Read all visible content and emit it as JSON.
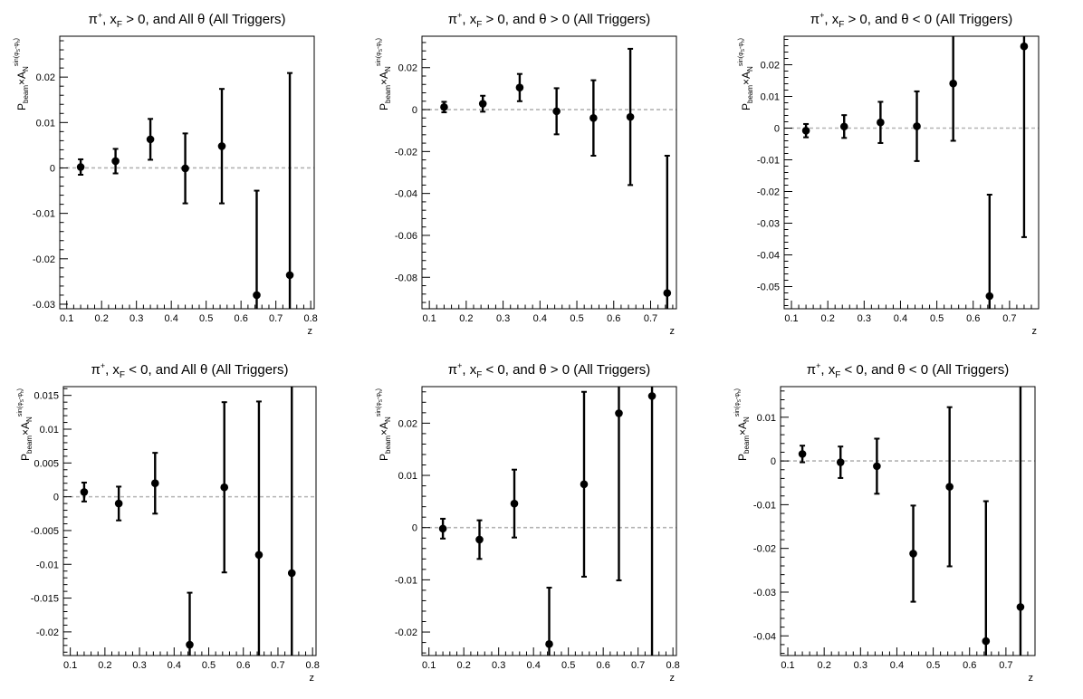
{
  "chart_data": [
    {
      "type": "scatter",
      "title": "π⁺, x_F > 0, and All θ (All Triggers)",
      "xlabel": "z",
      "ylabel": "P_beam × A_N^{sin(φ_S − φ_h)}",
      "xlim": [
        0.08,
        0.81
      ],
      "ylim": [
        -0.031,
        0.029
      ],
      "xticks": [
        0.1,
        0.2,
        0.3,
        0.4,
        0.5,
        0.6,
        0.7,
        0.8
      ],
      "yticks": [
        -0.03,
        -0.02,
        -0.01,
        0,
        0.01,
        0.02
      ],
      "ytick_labels": [
        "-0.03",
        "-0.02",
        "-0.01",
        "0",
        "0.01",
        "0.02"
      ],
      "zero_line": true,
      "grid": false,
      "x": [
        0.14,
        0.24,
        0.34,
        0.44,
        0.545,
        0.645,
        0.74
      ],
      "y": [
        0.0002,
        0.0015,
        0.0063,
        -0.0001,
        0.0048,
        -0.028,
        -0.0236
      ],
      "err": [
        0.0017,
        0.0027,
        0.0045,
        0.0077,
        0.0126,
        0.023,
        0.0445
      ]
    },
    {
      "type": "scatter",
      "title": "π⁺, x_F > 0, and θ > 0 (All Triggers)",
      "xlabel": "z",
      "ylabel": "P_beam × A_N^{sin(φ_S − φ_h)}",
      "xlim": [
        0.08,
        0.77
      ],
      "ylim": [
        -0.095,
        0.035
      ],
      "xticks": [
        0.1,
        0.2,
        0.3,
        0.4,
        0.5,
        0.6,
        0.7
      ],
      "yticks": [
        -0.08,
        -0.06,
        -0.04,
        -0.02,
        0,
        0.02
      ],
      "ytick_labels": [
        "-0.08",
        "-0.06",
        "-0.04",
        "-0.02",
        "0",
        "0.02"
      ],
      "zero_line": true,
      "grid": false,
      "x": [
        0.14,
        0.245,
        0.345,
        0.445,
        0.545,
        0.645,
        0.745
      ],
      "y": [
        0.0012,
        0.0028,
        0.0105,
        -0.0008,
        -0.004,
        -0.0035,
        -0.0875
      ],
      "err": [
        0.0025,
        0.0038,
        0.0065,
        0.011,
        0.018,
        0.0325,
        0.0655
      ]
    },
    {
      "type": "scatter",
      "title": "π⁺, x_F > 0, and θ < 0 (All Triggers)",
      "xlabel": "z",
      "ylabel": "P_beam × A_N^{sin(φ_S − φ_h)}",
      "xlim": [
        0.08,
        0.78
      ],
      "ylim": [
        -0.057,
        0.029
      ],
      "xticks": [
        0.1,
        0.2,
        0.3,
        0.4,
        0.5,
        0.6,
        0.7
      ],
      "yticks": [
        -0.05,
        -0.04,
        -0.03,
        -0.02,
        -0.01,
        0,
        0.01,
        0.02
      ],
      "ytick_labels": [
        "-0.05",
        "-0.04",
        "-0.03",
        "-0.02",
        "-0.01",
        "0",
        "0.01",
        "0.02"
      ],
      "zero_line": true,
      "grid": false,
      "x": [
        0.14,
        0.245,
        0.345,
        0.445,
        0.545,
        0.645,
        0.74
      ],
      "y": [
        -0.0008,
        0.0005,
        0.0018,
        0.0006,
        0.0141,
        -0.053,
        0.0258
      ],
      "err": [
        0.0021,
        0.0036,
        0.0065,
        0.011,
        0.0181,
        0.032,
        0.0602
      ]
    },
    {
      "type": "scatter",
      "title": "π⁺, x_F < 0, and All θ (All Triggers)",
      "xlabel": "z",
      "ylabel": "P_beam × A_N^{sin(φ_S − φ_h)}",
      "xlim": [
        0.08,
        0.81
      ],
      "ylim": [
        -0.0235,
        0.0163
      ],
      "xticks": [
        0.1,
        0.2,
        0.3,
        0.4,
        0.5,
        0.6,
        0.7,
        0.8
      ],
      "yticks": [
        -0.02,
        -0.015,
        -0.01,
        -0.005,
        0,
        0.005,
        0.01,
        0.015
      ],
      "ytick_labels": [
        "-0.02",
        "-0.015",
        "-0.01",
        "-0.005",
        "0",
        "0.005",
        "0.01",
        "0.015"
      ],
      "zero_line": true,
      "grid": false,
      "x": [
        0.14,
        0.24,
        0.345,
        0.445,
        0.545,
        0.645,
        0.74
      ],
      "y": [
        0.0007,
        -0.001,
        0.002,
        -0.0219,
        0.0014,
        -0.0086,
        -0.0113
      ],
      "err": [
        0.0014,
        0.0025,
        0.0045,
        0.0077,
        0.0126,
        0.0227,
        0.0313
      ]
    },
    {
      "type": "scatter",
      "title": "π⁺, x_F < 0, and θ > 0 (All Triggers)",
      "xlabel": "z",
      "ylabel": "P_beam × A_N^{sin(φ_S − φ_h)}",
      "xlim": [
        0.08,
        0.81
      ],
      "ylim": [
        -0.0245,
        0.027
      ],
      "xticks": [
        0.1,
        0.2,
        0.3,
        0.4,
        0.5,
        0.6,
        0.7,
        0.8
      ],
      "yticks": [
        -0.02,
        -0.01,
        0,
        0.01,
        0.02
      ],
      "ytick_labels": [
        "-0.02",
        "-0.01",
        "0",
        "0.01",
        "0.02"
      ],
      "zero_line": true,
      "grid": false,
      "x": [
        0.14,
        0.245,
        0.345,
        0.445,
        0.545,
        0.645,
        0.74
      ],
      "y": [
        -0.0002,
        -0.0023,
        0.0046,
        -0.0223,
        0.0083,
        0.0219,
        0.0252
      ],
      "err": [
        0.0019,
        0.0037,
        0.0065,
        0.0108,
        0.0177,
        0.032,
        0.05
      ]
    },
    {
      "type": "scatter",
      "title": "π⁺, x_F < 0, and θ < 0 (All Triggers)",
      "xlabel": "z",
      "ylabel": "P_beam × A_N^{sin(φ_S − φ_h)}",
      "xlim": [
        0.08,
        0.78
      ],
      "ylim": [
        -0.0445,
        0.017
      ],
      "xticks": [
        0.1,
        0.2,
        0.3,
        0.4,
        0.5,
        0.6,
        0.7
      ],
      "yticks": [
        -0.04,
        -0.03,
        -0.02,
        -0.01,
        0,
        0.01
      ],
      "ytick_labels": [
        "-0.04",
        "-0.03",
        "-0.02",
        "-0.01",
        "0",
        "0.01"
      ],
      "zero_line": true,
      "grid": false,
      "x": [
        0.14,
        0.245,
        0.345,
        0.445,
        0.545,
        0.645,
        0.74
      ],
      "y": [
        0.0016,
        -0.0003,
        -0.0012,
        -0.0212,
        -0.0059,
        -0.0412,
        -0.0334
      ],
      "err": [
        0.0019,
        0.0036,
        0.0063,
        0.011,
        0.0182,
        0.032,
        0.0505
      ]
    }
  ]
}
